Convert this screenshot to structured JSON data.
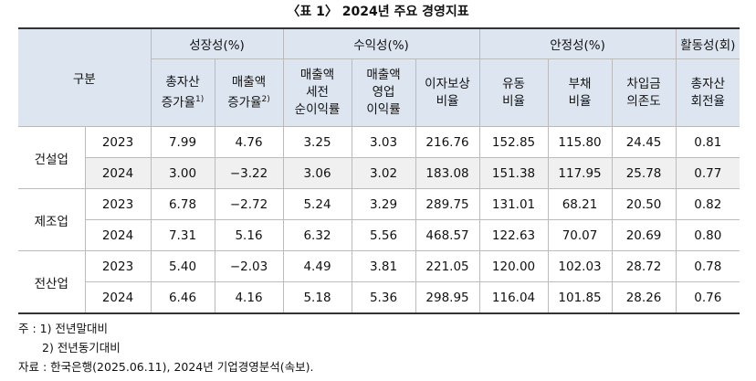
{
  "title": "〈표 1〉 2024년 주요 경영지표",
  "table": {
    "corner": "구분",
    "groups": [
      {
        "label": "성장성(%)",
        "columns": [
          {
            "lines": [
              "총자산",
              "증가율"
            ],
            "sup": "1)"
          },
          {
            "lines": [
              "매출액",
              "증가율"
            ],
            "sup": "2)"
          }
        ]
      },
      {
        "label": "수익성(%)",
        "columns": [
          {
            "lines": [
              "매출액",
              "세전",
              "순이익률"
            ]
          },
          {
            "lines": [
              "매출액",
              "영업",
              "이익률"
            ]
          },
          {
            "lines": [
              "이자보상",
              "비율"
            ]
          }
        ]
      },
      {
        "label": "안정성(%)",
        "columns": [
          {
            "lines": [
              "유동",
              "비율"
            ]
          },
          {
            "lines": [
              "부채",
              "비율"
            ]
          },
          {
            "lines": [
              "차입금",
              "의존도"
            ]
          }
        ]
      },
      {
        "label": "활동성(회)",
        "columns": [
          {
            "lines": [
              "총자산",
              "회전율"
            ]
          }
        ]
      }
    ],
    "sectors": [
      {
        "name": "건설업",
        "rows": [
          {
            "year": "2023",
            "values": [
              "7.99",
              "4.76",
              "3.25",
              "3.03",
              "216.76",
              "152.85",
              "115.80",
              "24.45",
              "0.81"
            ]
          },
          {
            "year": "2024",
            "values": [
              "3.00",
              "−3.22",
              "3.06",
              "3.02",
              "183.08",
              "151.38",
              "117.95",
              "25.78",
              "0.77"
            ]
          }
        ]
      },
      {
        "name": "제조업",
        "rows": [
          {
            "year": "2023",
            "values": [
              "6.78",
              "−2.72",
              "5.24",
              "3.29",
              "289.75",
              "131.01",
              "68.21",
              "20.50",
              "0.82"
            ]
          },
          {
            "year": "2024",
            "values": [
              "7.31",
              "5.16",
              "6.32",
              "5.56",
              "468.57",
              "122.63",
              "70.07",
              "20.69",
              "0.80"
            ]
          }
        ]
      },
      {
        "name": "전산업",
        "rows": [
          {
            "year": "2023",
            "values": [
              "5.40",
              "−2.03",
              "4.49",
              "3.81",
              "221.05",
              "120.00",
              "102.03",
              "28.72",
              "0.78"
            ]
          },
          {
            "year": "2024",
            "values": [
              "6.46",
              "4.16",
              "5.18",
              "5.36",
              "298.95",
              "116.04",
              "101.85",
              "28.26",
              "0.76"
            ]
          }
        ]
      }
    ]
  },
  "notes": {
    "label": "주 :",
    "items": [
      "1) 전년말대비",
      "2) 전년동기대비"
    ]
  },
  "source": {
    "label": "자료 :",
    "text": "한국은행(2025.06.11), 2024년 기업경영분석(속보)."
  }
}
